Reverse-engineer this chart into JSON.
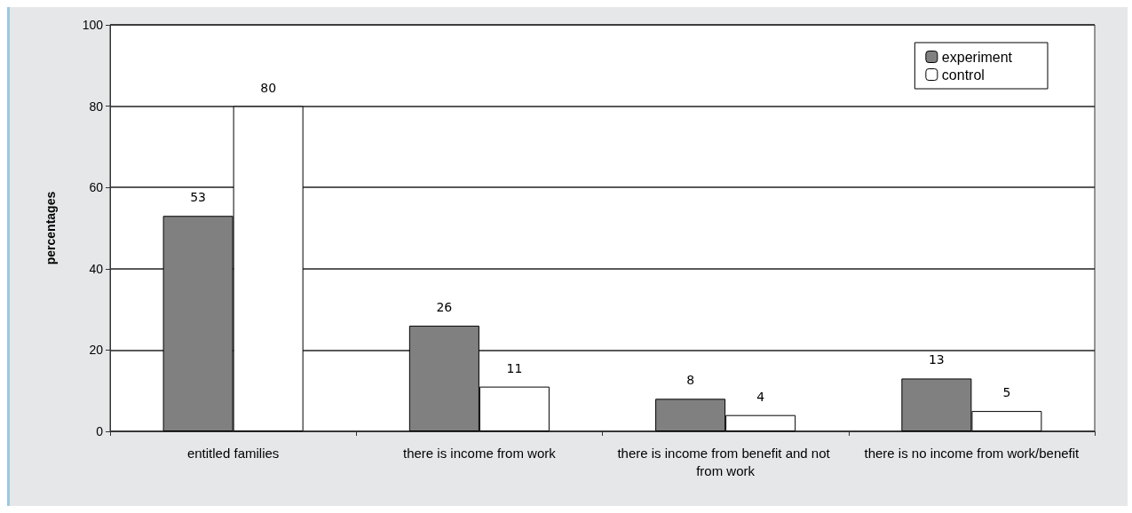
{
  "chart_data": {
    "type": "bar",
    "ylabel": "percentages",
    "categories": [
      "entitled families",
      "there is income from work",
      "there is income from benefit and not from work",
      "there is no income from work/benefit"
    ],
    "series": [
      {
        "name": "experiment",
        "color": "#808080",
        "values": [
          53,
          26,
          8,
          13
        ]
      },
      {
        "name": "control",
        "color": "#ffffff",
        "values": [
          80,
          11,
          4,
          5
        ]
      }
    ],
    "ylim": [
      0,
      100
    ],
    "yticks": [
      0,
      20,
      40,
      60,
      80,
      100
    ],
    "grid": "y",
    "legend": "top right",
    "data_labels": true
  }
}
